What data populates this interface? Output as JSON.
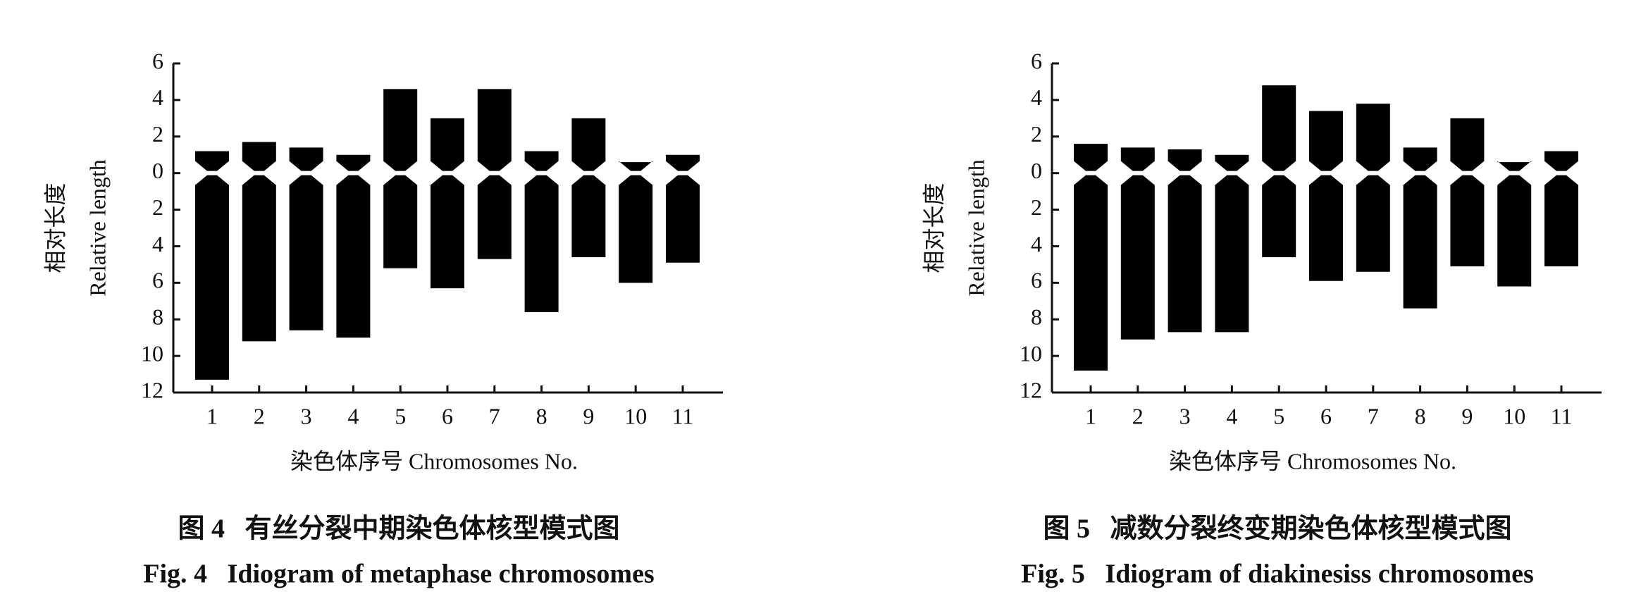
{
  "chart_data": [
    {
      "type": "idiogram",
      "title": "图 4   有丝分裂中期染色体核型模式图",
      "subtitle": "Fig. 4   Idiogram of metaphase chromosomes",
      "ylabel": [
        "相对长度",
        "Relative length"
      ],
      "xlabel": "染色体序号 Chromosomes No.",
      "categories": [
        "1",
        "2",
        "3",
        "4",
        "5",
        "6",
        "7",
        "8",
        "9",
        "10",
        "11"
      ],
      "series": [
        {
          "values": [
            1.2,
            1.7,
            1.4,
            1.0,
            4.6,
            3.0,
            4.6,
            1.2,
            3.0,
            0.6,
            1.0
          ]
        },
        {
          "values": [
            -11.3,
            -9.2,
            -8.6,
            -9.0,
            -5.2,
            -6.3,
            -4.7,
            -7.6,
            -4.6,
            -6.0,
            -4.9
          ]
        }
      ],
      "color": "#000000",
      "ylim": [
        -12,
        6
      ],
      "yticks": [
        {
          "value": -12,
          "label": "12"
        },
        {
          "value": -10,
          "label": "10"
        },
        {
          "value": -8,
          "label": "8"
        },
        {
          "value": -6,
          "label": "6"
        },
        {
          "value": -4,
          "label": "4"
        },
        {
          "value": -2,
          "label": "2"
        },
        0,
        2,
        4,
        6
      ]
    },
    {
      "type": "idiogram",
      "title": "图 5   减数分裂终变期染色体核型模式图",
      "subtitle": "Fig. 5   Idiogram of diakinesiss chromosomes",
      "ylabel": [
        "相对长度",
        "Relative length"
      ],
      "xlabel": "染色体序号 Chromosomes No.",
      "categories": [
        "1",
        "2",
        "3",
        "4",
        "5",
        "6",
        "7",
        "8",
        "9",
        "10",
        "11"
      ],
      "series": [
        {
          "values": [
            1.6,
            1.4,
            1.3,
            1.0,
            4.8,
            3.4,
            3.8,
            1.4,
            3.0,
            0.6,
            1.2
          ]
        },
        {
          "values": [
            -10.8,
            -9.1,
            -8.7,
            -8.7,
            -4.6,
            -5.9,
            -5.4,
            -7.4,
            -5.1,
            -6.2,
            -5.1
          ]
        }
      ],
      "color": "#000000",
      "ylim": [
        -12,
        6
      ],
      "yticks": [
        {
          "value": -12,
          "label": "12"
        },
        {
          "value": -10,
          "label": "10"
        },
        {
          "value": -8,
          "label": "8"
        },
        {
          "value": -6,
          "label": "6"
        },
        {
          "value": -4,
          "label": "4"
        },
        {
          "value": -2,
          "label": "2"
        },
        0,
        2,
        4,
        6
      ]
    }
  ]
}
